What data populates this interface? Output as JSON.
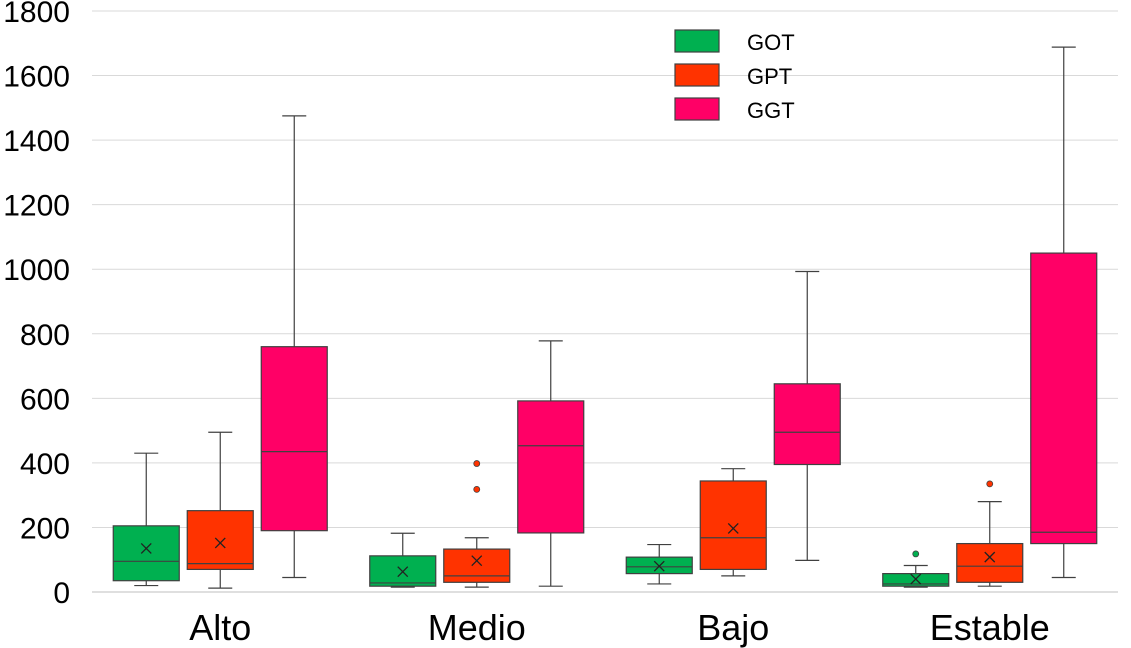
{
  "chart_data": {
    "type": "box",
    "title": "",
    "xlabel": "",
    "ylabel": "",
    "ylim": [
      0,
      1800
    ],
    "yticks": [
      0,
      200,
      400,
      600,
      800,
      1000,
      1200,
      1400,
      1600,
      1800
    ],
    "grid": true,
    "legend_position": "top-center",
    "categories": [
      "Alto",
      "Medio",
      "Bajo",
      "Estable"
    ],
    "series": [
      {
        "name": "GOT",
        "color": "#00b050",
        "boxes": [
          {
            "min": 20,
            "q1": 35,
            "median": 95,
            "q3": 205,
            "max": 430,
            "mean": 135,
            "outliers": []
          },
          {
            "min": 15,
            "q1": 18,
            "median": 28,
            "q3": 112,
            "max": 182,
            "mean": 63,
            "outliers": []
          },
          {
            "min": 25,
            "q1": 57,
            "median": 78,
            "q3": 108,
            "max": 147,
            "mean": 80,
            "outliers": []
          },
          {
            "min": 15,
            "q1": 18,
            "median": 25,
            "q3": 57,
            "max": 82,
            "mean": 40,
            "outliers": [
              118
            ]
          }
        ]
      },
      {
        "name": "GPT",
        "color": "#ff3300",
        "boxes": [
          {
            "min": 12,
            "q1": 70,
            "median": 88,
            "q3": 252,
            "max": 495,
            "mean": 152,
            "outliers": []
          },
          {
            "min": 15,
            "q1": 30,
            "median": 50,
            "q3": 133,
            "max": 168,
            "mean": 97,
            "outliers": [
              318,
              398
            ]
          },
          {
            "min": 50,
            "q1": 70,
            "median": 168,
            "q3": 344,
            "max": 382,
            "mean": 197,
            "outliers": []
          },
          {
            "min": 18,
            "q1": 30,
            "median": 80,
            "q3": 150,
            "max": 280,
            "mean": 108,
            "outliers": [
              335
            ]
          }
        ]
      },
      {
        "name": "GGT",
        "color": "#ff0066",
        "boxes": [
          {
            "min": 45,
            "q1": 190,
            "median": 435,
            "q3": 760,
            "max": 1475,
            "mean": null,
            "outliers": []
          },
          {
            "min": 18,
            "q1": 183,
            "median": 453,
            "q3": 592,
            "max": 778,
            "mean": null,
            "outliers": []
          },
          {
            "min": 98,
            "q1": 395,
            "median": 495,
            "q3": 645,
            "max": 993,
            "mean": null,
            "outliers": []
          },
          {
            "min": 45,
            "q1": 150,
            "median": 185,
            "q3": 1050,
            "max": 1688,
            "mean": null,
            "outliers": []
          }
        ]
      }
    ]
  }
}
